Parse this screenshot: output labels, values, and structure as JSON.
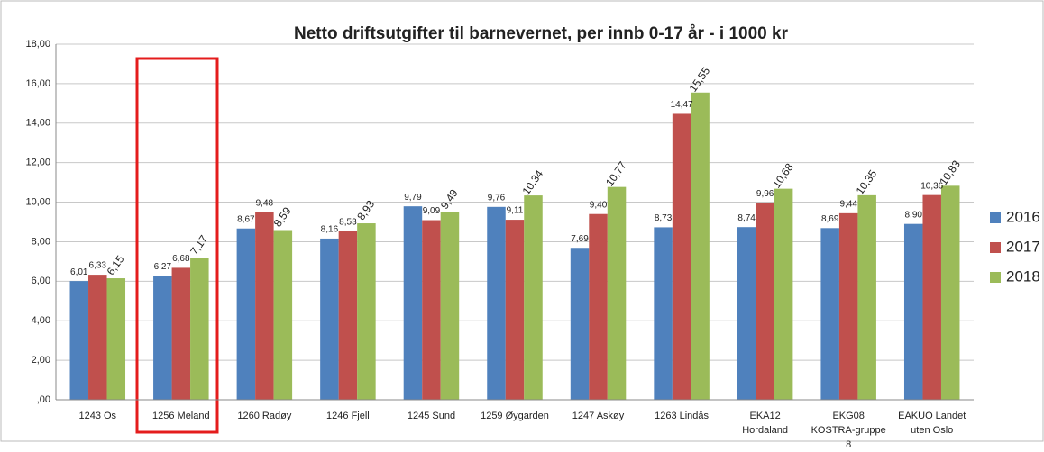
{
  "chart_data": {
    "type": "bar",
    "title": "Netto driftsutgifter til barnevernet, per innb 0-17 år - i 1000 kr",
    "categories": [
      "1243 Os",
      "1256 Meland",
      "1260 Radøy",
      "1246 Fjell",
      "1245 Sund",
      "1259 Øygarden",
      "1247 Askøy",
      "1263 Lindås",
      "EKA12 Hordaland",
      "EKG08 KOSTRA-gruppe 8",
      "EAKUO Landet uten Oslo"
    ],
    "series": [
      {
        "name": "2016",
        "color": "#4f81bd",
        "values": [
          6.01,
          6.27,
          8.67,
          8.16,
          9.79,
          9.76,
          7.69,
          8.73,
          8.74,
          8.69,
          8.9
        ],
        "value_labels": [
          "6,01",
          "6,27",
          "8,67",
          "8,16",
          "9,79",
          "9,76",
          "7,69",
          "8,73",
          "8,74",
          "8,69",
          "8,90"
        ]
      },
      {
        "name": "2017",
        "color": "#c0504d",
        "values": [
          6.33,
          6.68,
          9.48,
          8.53,
          9.09,
          9.11,
          9.4,
          14.47,
          9.96,
          9.44,
          10.36
        ],
        "value_labels": [
          "6,33",
          "6,68",
          "9,48",
          "8,53",
          "9,09",
          "9,11",
          "9,40",
          "14,47",
          "9,96",
          "9,44",
          "10,36"
        ]
      },
      {
        "name": "2018",
        "color": "#9bbb59",
        "values": [
          6.15,
          7.17,
          8.59,
          8.93,
          9.49,
          10.34,
          10.77,
          15.55,
          10.68,
          10.35,
          10.83
        ],
        "value_labels": [
          "6,15",
          "7,17",
          "8,59",
          "8,93",
          "9,49",
          "10,34",
          "10,77",
          "15,55",
          "10,68",
          "10,35",
          "10,83"
        ]
      }
    ],
    "ylim": [
      0,
      18
    ],
    "yticks": [
      {
        "value": 0,
        "label": ",00"
      },
      {
        "value": 2,
        "label": "2,00"
      },
      {
        "value": 4,
        "label": "4,00"
      },
      {
        "value": 6,
        "label": "6,00"
      },
      {
        "value": 8,
        "label": "8,00"
      },
      {
        "value": 10,
        "label": "10,00"
      },
      {
        "value": 12,
        "label": "12,00"
      },
      {
        "value": 14,
        "label": "14,00"
      },
      {
        "value": 16,
        "label": "16,00"
      },
      {
        "value": 18,
        "label": "18,00"
      }
    ],
    "grid": true,
    "legend": "right"
  }
}
